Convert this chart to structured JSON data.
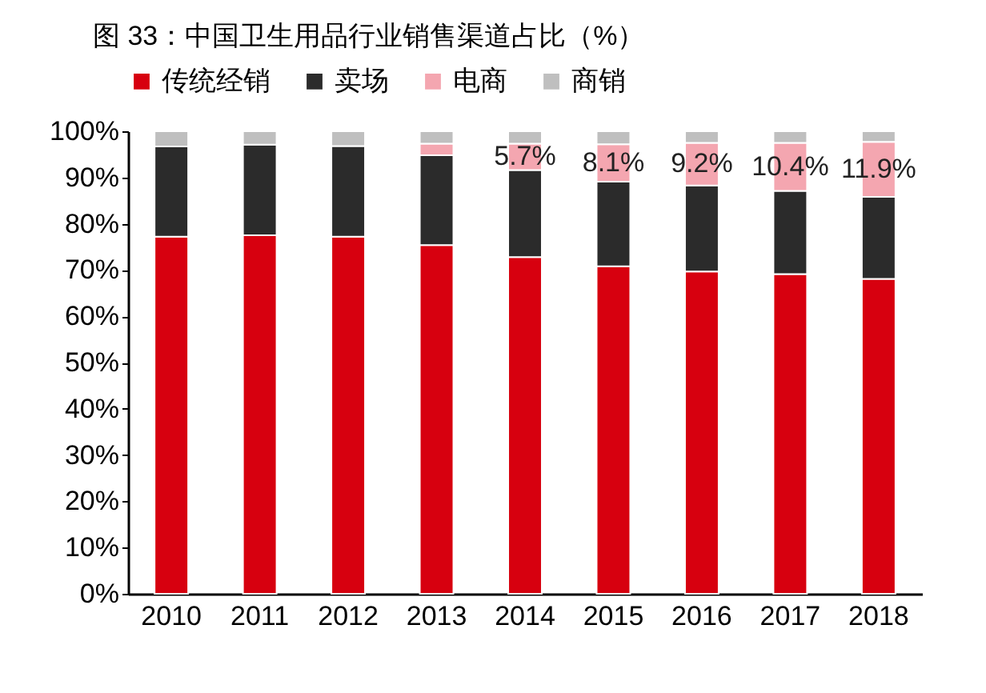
{
  "chart_data": {
    "type": "bar",
    "title": "图 33：中国卫生用品行业销售渠道占比（%）",
    "stacked": true,
    "legend": "top",
    "categories": [
      "2010",
      "2011",
      "2012",
      "2013",
      "2014",
      "2015",
      "2016",
      "2017",
      "2018"
    ],
    "series": [
      {
        "name": "传统经销",
        "color": "#d7000f",
        "values": [
          77.2,
          77.5,
          77.2,
          75.4,
          72.8,
          70.8,
          69.7,
          69.1,
          68.1
        ]
      },
      {
        "name": "卖场",
        "color": "#2b2b2b",
        "values": [
          19.5,
          19.6,
          19.6,
          19.4,
          18.8,
          18.3,
          18.6,
          18.0,
          17.7
        ]
      },
      {
        "name": "电商",
        "color": "#f4a6b0",
        "values": [
          0,
          0,
          0,
          2.5,
          5.7,
          8.1,
          9.2,
          10.4,
          11.9
        ],
        "value_labels": [
          null,
          null,
          null,
          null,
          "5.7%",
          "8.1%",
          "9.2%",
          "10.4%",
          "11.9%"
        ]
      },
      {
        "name": "商销",
        "color": "#bfbfbf",
        "values": [
          3.3,
          2.9,
          3.2,
          2.7,
          2.7,
          2.8,
          2.5,
          2.5,
          2.3
        ]
      }
    ],
    "ylim": [
      0,
      100
    ],
    "yticks": [
      {
        "value": 0,
        "label": "0%"
      },
      {
        "value": 10,
        "label": "10%"
      },
      {
        "value": 20,
        "label": "20%"
      },
      {
        "value": 30,
        "label": "30%"
      },
      {
        "value": 40,
        "label": "40%"
      },
      {
        "value": 50,
        "label": "50%"
      },
      {
        "value": 60,
        "label": "60%"
      },
      {
        "value": 70,
        "label": "70%"
      },
      {
        "value": 80,
        "label": "80%"
      },
      {
        "value": 90,
        "label": "90%"
      },
      {
        "value": 100,
        "label": "100%"
      }
    ],
    "grid": false
  }
}
